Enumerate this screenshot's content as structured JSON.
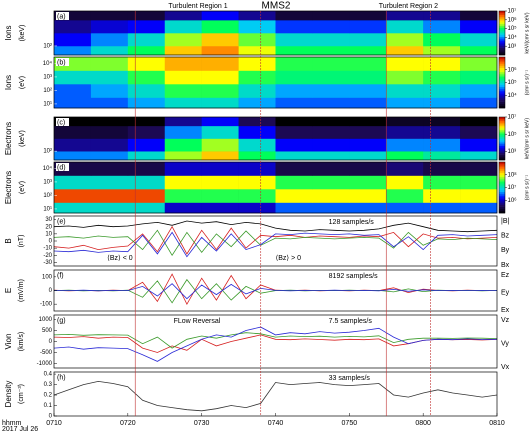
{
  "title": "MMS2",
  "regions": [
    {
      "label": "Turbulent Region 1",
      "start": 441,
      "end": 458
    },
    {
      "label": "Turbulent Region 2",
      "start": 475,
      "end": 481
    }
  ],
  "chart_data": [
    {
      "type": "heatmap",
      "panel": "(a)",
      "group": "Ions",
      "ylabel": "(keV)",
      "ylog": true,
      "xlim": [
        430,
        490
      ],
      "ylim": [
        20,
        50000
      ],
      "yticks": [
        {
          "value": 100,
          "label": "10²"
        }
      ],
      "x_edges": [
        430,
        435,
        440,
        445,
        450,
        455,
        460,
        465,
        470,
        475,
        480,
        485,
        490
      ],
      "y_edges": [
        20,
        100,
        1000,
        10000,
        50000
      ],
      "zlim": [
        100,
        10000000
      ],
      "zticks": [
        {
          "value": 1000,
          "label": "10³"
        },
        {
          "value": 10000,
          "label": "10⁴"
        },
        {
          "value": 100000,
          "label": "10⁵"
        },
        {
          "value": 1000000,
          "label": "10⁶"
        },
        {
          "value": 10000000,
          "label": "10⁷"
        }
      ],
      "zlabel": "keV/(cm² s sr keV)",
      "values": [
        [
          10000.0,
          30000.0,
          100000.0,
          1000000.0,
          2000000.0,
          500000.0,
          100000.0,
          100000.0,
          100000.0,
          1000000.0,
          300000.0,
          100000.0
        ],
        [
          3000.0,
          10000.0,
          30000.0,
          300000.0,
          1000000.0,
          200000.0,
          30000.0,
          30000.0,
          30000.0,
          300000.0,
          100000.0,
          30000.0
        ],
        [
          1000.0,
          2000.0,
          3000.0,
          30000.0,
          100000.0,
          20000.0,
          5000.0,
          5000.0,
          5000.0,
          30000.0,
          10000.0,
          3000.0
        ],
        [
          300.0,
          300.0,
          300.0,
          1000.0,
          3000.0,
          1000.0,
          300.0,
          300.0,
          300.0,
          1000.0,
          1000.0,
          300.0
        ]
      ]
    },
    {
      "type": "heatmap",
      "panel": "(b)",
      "group": "Ions",
      "ylabel": "(eV)",
      "ylog": true,
      "xlim": [
        430,
        490
      ],
      "ylim": [
        5,
        30000
      ],
      "yticks": [
        {
          "value": 10,
          "label": "10¹"
        },
        {
          "value": 100,
          "label": "10²"
        },
        {
          "value": 1000,
          "label": "10³"
        },
        {
          "value": 10000,
          "label": "10⁴"
        }
      ],
      "x_edges": [
        430,
        435,
        440,
        445,
        450,
        455,
        460,
        465,
        470,
        475,
        480,
        485,
        490
      ],
      "y_edges": [
        5,
        30,
        300,
        3000,
        30000
      ],
      "zlim": [
        1000,
        10000000
      ],
      "zticks": [
        {
          "value": 10000,
          "label": "10⁴"
        },
        {
          "value": 100000,
          "label": "10⁵"
        },
        {
          "value": 1000000,
          "label": "10⁶"
        }
      ],
      "zlabel": "(cm² s sr)⁻¹",
      "values": [
        [
          30000.0,
          30000.0,
          50000.0,
          100000.0,
          100000.0,
          50000.0,
          30000.0,
          30000.0,
          30000.0,
          50000.0,
          50000.0,
          30000.0
        ],
        [
          30000.0,
          50000.0,
          100000.0,
          300000.0,
          300000.0,
          100000.0,
          50000.0,
          50000.0,
          50000.0,
          100000.0,
          100000.0,
          50000.0
        ],
        [
          100000.0,
          100000.0,
          300000.0,
          1000000.0,
          1000000.0,
          300000.0,
          200000.0,
          200000.0,
          200000.0,
          500000.0,
          300000.0,
          200000.0
        ],
        [
          500000.0,
          500000.0,
          1000000.0,
          2000000.0,
          2000000.0,
          1000000.0,
          300000.0,
          300000.0,
          300000.0,
          1000000.0,
          1000000.0,
          500000.0
        ]
      ]
    },
    {
      "type": "heatmap",
      "panel": "(c)",
      "group": "Electrons",
      "ylabel": "(keV)",
      "ylog": true,
      "xlim": [
        430,
        490
      ],
      "ylim": [
        20,
        50000
      ],
      "yticks": [
        {
          "value": 100,
          "label": "10²"
        }
      ],
      "x_edges": [
        430,
        435,
        440,
        445,
        450,
        455,
        460,
        465,
        470,
        475,
        480,
        485,
        490
      ],
      "y_edges": [
        20,
        100,
        1000,
        10000,
        50000
      ],
      "zlim": [
        100,
        10000000
      ],
      "zticks": [
        {
          "value": 1000,
          "label": "10³"
        },
        {
          "value": 100000,
          "label": "10⁵"
        },
        {
          "value": 10000000,
          "label": "10⁷"
        }
      ],
      "zlabel": "keV/(cm² s sr keV)",
      "values": [
        [
          10000.0,
          10000.0,
          30000.0,
          300000.0,
          1000000.0,
          100000.0,
          30000.0,
          30000.0,
          30000.0,
          100000.0,
          50000.0,
          30000.0
        ],
        [
          1000.0,
          1000.0,
          3000.0,
          100000.0,
          300000.0,
          30000.0,
          3000.0,
          3000.0,
          3000.0,
          10000.0,
          10000.0,
          3000.0
        ],
        [
          300.0,
          300.0,
          500.0,
          10000.0,
          30000.0,
          3000.0,
          500.0,
          500.0,
          500.0,
          1000.0,
          1000.0,
          500.0
        ],
        [
          100.0,
          100.0,
          100.0,
          1000.0,
          3000.0,
          500.0,
          100.0,
          100.0,
          100.0,
          200.0,
          200.0,
          100.0
        ]
      ]
    },
    {
      "type": "heatmap",
      "panel": "(d)",
      "group": "Electrons",
      "ylabel": "(eV)",
      "ylog": true,
      "xlim": [
        430,
        490
      ],
      "ylim": [
        5,
        30000
      ],
      "yticks": [
        {
          "value": 10,
          "label": "10¹"
        },
        {
          "value": 100,
          "label": "10²"
        },
        {
          "value": 1000,
          "label": "10³"
        },
        {
          "value": 10000,
          "label": "10⁴"
        }
      ],
      "x_edges": [
        430,
        435,
        440,
        445,
        450,
        455,
        460,
        465,
        470,
        475,
        480,
        485,
        490
      ],
      "y_edges": [
        5,
        30,
        300,
        3000,
        30000
      ],
      "zlim": [
        100000,
        1000000000
      ],
      "zticks": [
        {
          "value": 1000000,
          "label": "10⁶"
        },
        {
          "value": 10000000,
          "label": "10⁷"
        },
        {
          "value": 100000000,
          "label": "10⁸"
        }
      ],
      "zlabel": "(cm² s sr)⁻¹",
      "values": [
        [
          10000000.0,
          10000000.0,
          10000000.0,
          1000000.0,
          1000000.0,
          1000000.0,
          3000000.0,
          3000000.0,
          3000000.0,
          3000000.0,
          3000000.0,
          3000000.0
        ],
        [
          500000000.0,
          500000000.0,
          500000000.0,
          30000000.0,
          30000000.0,
          30000000.0,
          100000000.0,
          100000000.0,
          100000000.0,
          30000000.0,
          100000000.0,
          100000000.0
        ],
        [
          10000000.0,
          10000000.0,
          10000000.0,
          100000000.0,
          100000000.0,
          100000000.0,
          30000000.0,
          30000000.0,
          30000000.0,
          100000000.0,
          30000000.0,
          30000000.0
        ],
        [
          300000.0,
          300000.0,
          300000.0,
          1000000.0,
          1000000.0,
          1000000.0,
          300000.0,
          300000.0,
          300000.0,
          500000.0,
          300000.0,
          300000.0
        ]
      ]
    },
    {
      "type": "line",
      "panel": "(e)",
      "ylabel": "B",
      "yunit": "(nT)",
      "rate": "128 samples/s",
      "notes": [
        "⟨Bz⟩ < 0",
        "⟨Bz⟩ > 0"
      ],
      "xlim": [
        430,
        490
      ],
      "ylim": [
        -35,
        35
      ],
      "yticks": [
        30,
        20,
        10,
        0,
        -10,
        -20,
        -30
      ],
      "x": [
        430,
        432,
        434,
        436,
        438,
        440,
        442,
        444,
        446,
        448,
        450,
        452,
        454,
        456,
        458,
        460,
        462,
        464,
        466,
        468,
        470,
        472,
        474,
        476,
        478,
        480,
        482,
        484,
        486,
        488,
        490
      ],
      "series": [
        {
          "name": "|B|",
          "color": "#000000",
          "values": [
            20,
            21,
            19,
            22,
            20,
            21,
            24,
            26,
            22,
            28,
            25,
            27,
            23,
            26,
            24,
            18,
            15,
            14,
            16,
            15,
            14,
            15,
            17,
            22,
            25,
            20,
            15,
            14,
            13,
            14,
            15
          ]
        },
        {
          "name": "Bz",
          "color": "#d62020",
          "values": [
            -8,
            -10,
            -6,
            -12,
            -9,
            -7,
            10,
            -15,
            20,
            -18,
            15,
            -12,
            18,
            -10,
            8,
            6,
            8,
            5,
            7,
            6,
            5,
            7,
            6,
            12,
            -8,
            10,
            4,
            5,
            3,
            4,
            5
          ]
        },
        {
          "name": "By",
          "color": "#3a9a2a",
          "values": [
            5,
            6,
            4,
            7,
            5,
            6,
            -12,
            15,
            -20,
            12,
            -16,
            10,
            -8,
            14,
            -6,
            4,
            3,
            5,
            4,
            3,
            4,
            5,
            4,
            -10,
            12,
            -6,
            3,
            2,
            4,
            3,
            2
          ]
        },
        {
          "name": "Bx",
          "color": "#2a2ad6",
          "values": [
            -14,
            -15,
            -13,
            -16,
            -14,
            -15,
            8,
            -18,
            12,
            -22,
            5,
            -14,
            10,
            -12,
            -5,
            10,
            9,
            11,
            10,
            9,
            10,
            8,
            9,
            -8,
            6,
            -12,
            8,
            9,
            7,
            8,
            9
          ]
        }
      ]
    },
    {
      "type": "line",
      "panel": "(f)",
      "ylabel": "E",
      "yunit": "(mV/m)",
      "rate": "8192 samples/s",
      "xlim": [
        430,
        490
      ],
      "ylim": [
        -150,
        150
      ],
      "yticks": [
        100,
        0,
        -100
      ],
      "x": [
        430,
        432,
        434,
        436,
        438,
        440,
        442,
        444,
        446,
        448,
        450,
        452,
        454,
        456,
        458,
        460,
        462,
        464,
        466,
        468,
        470,
        472,
        474,
        476,
        478,
        480,
        482,
        484,
        486,
        488,
        490
      ],
      "series": [
        {
          "name": "Ez",
          "color": "#d62020",
          "values": [
            2,
            -3,
            1,
            -2,
            3,
            -1,
            60,
            -80,
            120,
            -100,
            90,
            -70,
            110,
            -60,
            40,
            2,
            -1,
            3,
            -2,
            1,
            -3,
            2,
            -1,
            20,
            -15,
            10,
            1,
            -2,
            2,
            -1,
            1
          ]
        },
        {
          "name": "Ey",
          "color": "#3a9a2a",
          "values": [
            -1,
            2,
            -2,
            1,
            -3,
            2,
            -50,
            70,
            -90,
            80,
            -60,
            50,
            -70,
            30,
            -20,
            -1,
            2,
            -2,
            1,
            -1,
            2,
            -1,
            1,
            -10,
            12,
            -8,
            2,
            -1,
            1,
            -2,
            1
          ]
        },
        {
          "name": "Ex",
          "color": "#2a2ad6",
          "values": [
            1,
            -1,
            2,
            -2,
            1,
            -1,
            30,
            -40,
            50,
            -60,
            40,
            -30,
            45,
            -25,
            15,
            1,
            -2,
            1,
            -1,
            2,
            -1,
            1,
            -2,
            8,
            -6,
            5,
            -1,
            1,
            -1,
            1,
            -1
          ]
        }
      ]
    },
    {
      "type": "line",
      "panel": "(g)",
      "ylabel": "Vion",
      "yunit": "(km/s)",
      "rate": "7.5 samples/s",
      "notes": [
        "FLow Reversal"
      ],
      "xlim": [
        430,
        490
      ],
      "ylim": [
        -1200,
        1200
      ],
      "yticks": [
        1000,
        500,
        0,
        -500,
        -1000
      ],
      "x": [
        430,
        432,
        434,
        436,
        438,
        440,
        442,
        444,
        446,
        448,
        450,
        452,
        454,
        456,
        458,
        460,
        462,
        464,
        466,
        468,
        470,
        472,
        474,
        476,
        478,
        480,
        482,
        484,
        486,
        488,
        490
      ],
      "series": [
        {
          "name": "Vz",
          "color": "#d62020",
          "values": [
            200,
            180,
            220,
            150,
            200,
            180,
            -300,
            -500,
            -200,
            -400,
            100,
            -200,
            0,
            150,
            300,
            100,
            80,
            120,
            90,
            60,
            100,
            80,
            120,
            -200,
            -100,
            50,
            100,
            80,
            90,
            70,
            100
          ]
        },
        {
          "name": "Vy",
          "color": "#3a9a2a",
          "values": [
            300,
            320,
            280,
            310,
            300,
            290,
            -100,
            200,
            -300,
            100,
            250,
            150,
            300,
            400,
            350,
            200,
            250,
            220,
            240,
            200,
            230,
            210,
            260,
            -50,
            100,
            150,
            150,
            140,
            160,
            150,
            130
          ]
        },
        {
          "name": "Vx",
          "color": "#2a2ad6",
          "values": [
            -300,
            -250,
            -350,
            -280,
            -300,
            -320,
            -600,
            -900,
            -500,
            -200,
            100,
            300,
            200,
            500,
            650,
            300,
            400,
            350,
            450,
            380,
            420,
            500,
            600,
            200,
            -100,
            50,
            100,
            80,
            120,
            90,
            100
          ]
        }
      ]
    },
    {
      "type": "line",
      "panel": "(h)",
      "ylabel": "Density",
      "yunit": "(cm⁻³)",
      "rate": "33 samples/s",
      "xlim": [
        430,
        490
      ],
      "ylim": [
        0,
        0.42
      ],
      "yticks": [
        0,
        0.1,
        0.2,
        0.3,
        0.4
      ],
      "xticks": [
        {
          "value": 430,
          "label": "0710"
        },
        {
          "value": 440,
          "label": "0720"
        },
        {
          "value": 450,
          "label": "0730"
        },
        {
          "value": 460,
          "label": "0740"
        },
        {
          "value": 470,
          "label": "0750"
        },
        {
          "value": 480,
          "label": "0800"
        },
        {
          "value": 490,
          "label": "0810"
        }
      ],
      "xlabel": "hhmm",
      "date": "2017 Jul 26",
      "x": [
        430,
        432,
        434,
        436,
        438,
        440,
        442,
        444,
        446,
        448,
        450,
        452,
        454,
        456,
        458,
        460,
        462,
        464,
        466,
        468,
        470,
        472,
        474,
        476,
        478,
        480,
        482,
        484,
        486,
        488,
        490
      ],
      "series": [
        {
          "name": "Density",
          "color": "#333333",
          "values": [
            0.2,
            0.25,
            0.3,
            0.33,
            0.31,
            0.28,
            0.15,
            0.1,
            0.08,
            0.06,
            0.05,
            0.07,
            0.1,
            0.08,
            0.12,
            0.32,
            0.3,
            0.31,
            0.32,
            0.3,
            0.29,
            0.3,
            0.31,
            0.2,
            0.18,
            0.22,
            0.25,
            0.22,
            0.2,
            0.18,
            0.2
          ]
        }
      ]
    }
  ]
}
